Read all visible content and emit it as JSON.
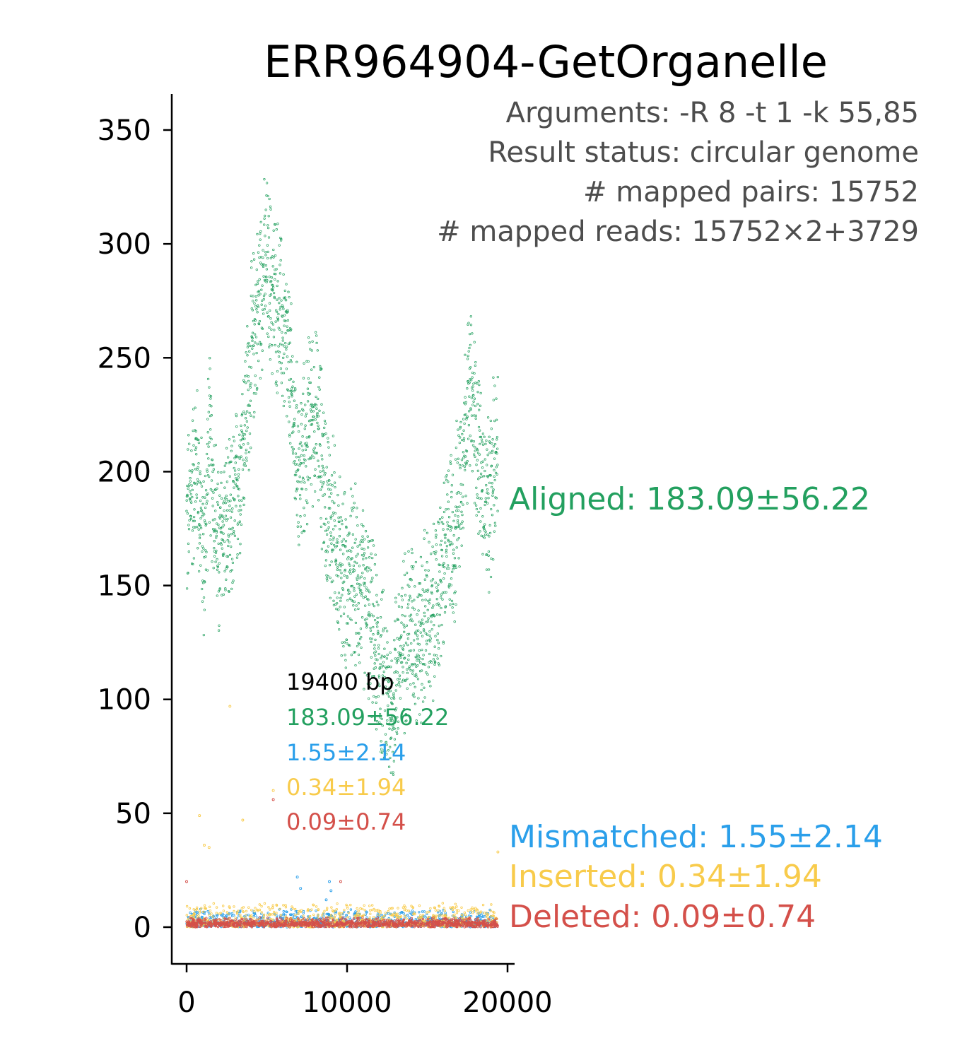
{
  "chart_data": {
    "type": "scatter",
    "title": "ERR964904-GetOrganelle",
    "arguments_lines": [
      "Arguments: -R 8 -t 1 -k 55,85",
      "Result status: circular genome",
      "# mapped pairs: 15752",
      "# mapped reads: 15752×2+3729"
    ],
    "xlabel": "",
    "ylabel": "",
    "xlim": [
      -950,
      20350
    ],
    "ylim": [
      -16,
      366
    ],
    "x_ticks": [
      0,
      10000,
      20000
    ],
    "y_ticks": [
      0,
      50,
      100,
      150,
      200,
      250,
      300,
      350
    ],
    "genome_length_bp": 19400,
    "inner_stats": {
      "length_label": "19400 bp",
      "aligned": "183.09±56.22",
      "mismatched": "1.55±2.14",
      "inserted": "0.34±1.94",
      "deleted": "0.09±0.74"
    },
    "series": [
      {
        "name": "Aligned",
        "label": "Aligned: 183.09±56.22",
        "mean": 183.09,
        "sd": 56.22,
        "color": "#23a05f",
        "profile": {
          "x": [
            0,
            300,
            600,
            900,
            1100,
            1400,
            1700,
            2000,
            2300,
            2700,
            3100,
            3500,
            3800,
            4100,
            4400,
            4700,
            5000,
            5300,
            5600,
            5900,
            6200,
            6500,
            6800,
            7100,
            7400,
            7700,
            8000,
            8300,
            8600,
            8900,
            9200,
            9500,
            9800,
            10100,
            10400,
            10700,
            11000,
            11300,
            11600,
            11900,
            12200,
            12500,
            12800,
            13100,
            13400,
            13700,
            14000,
            14300,
            14600,
            14900,
            15200,
            15500,
            15800,
            16100,
            16400,
            16700,
            17000,
            17300,
            17600,
            17900,
            18200,
            18500,
            18800,
            19100,
            19400
          ],
          "y": [
            175,
            190,
            205,
            180,
            160,
            215,
            190,
            160,
            180,
            170,
            190,
            215,
            230,
            255,
            270,
            285,
            290,
            280,
            275,
            265,
            255,
            235,
            210,
            200,
            210,
            225,
            225,
            215,
            195,
            180,
            175,
            160,
            155,
            150,
            155,
            150,
            145,
            140,
            130,
            120,
            110,
            100,
            95,
            115,
            120,
            130,
            135,
            130,
            125,
            140,
            130,
            140,
            150,
            160,
            175,
            170,
            195,
            215,
            235,
            225,
            210,
            190,
            180,
            200,
            215
          ],
          "band": 45
        }
      },
      {
        "name": "Mismatched",
        "label": "Mismatched: 1.55±2.14",
        "mean": 1.55,
        "sd": 2.14,
        "color": "#2a9fea",
        "spikes": [
          [
            6900,
            22
          ],
          [
            8900,
            20
          ],
          [
            9000,
            16
          ],
          [
            8700,
            12
          ],
          [
            7100,
            17
          ]
        ]
      },
      {
        "name": "Inserted",
        "label": "Inserted: 0.34±1.94",
        "mean": 0.34,
        "sd": 1.94,
        "color": "#f8cb4b",
        "spikes": [
          [
            800,
            49
          ],
          [
            5400,
            60
          ],
          [
            3500,
            47
          ],
          [
            2700,
            97
          ],
          [
            1400,
            35
          ],
          [
            1100,
            36
          ],
          [
            19400,
            33
          ]
        ]
      },
      {
        "name": "Deleted",
        "label": "Deleted: 0.09±0.74",
        "mean": 0.09,
        "sd": 0.74,
        "color": "#d4504a",
        "spikes": [
          [
            0,
            20
          ],
          [
            9600,
            20
          ],
          [
            5400,
            56
          ]
        ]
      }
    ]
  }
}
